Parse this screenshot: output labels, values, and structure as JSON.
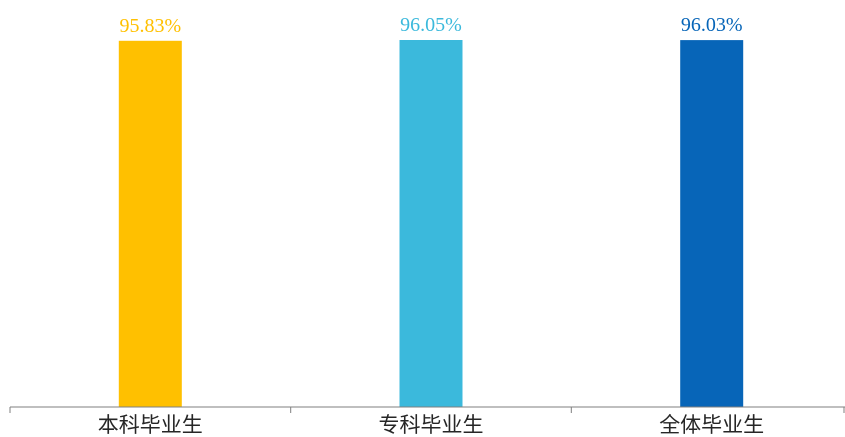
{
  "chart_data": {
    "type": "bar",
    "categories": [
      "本科毕业生",
      "专科毕业生",
      "全体毕业生"
    ],
    "values": [
      95.83,
      96.05,
      96.03
    ],
    "data_labels": [
      "95.83%",
      "96.05%",
      "96.03%"
    ],
    "colors": [
      "#FFC000",
      "#3BB9DC",
      "#0765B8"
    ],
    "title": "",
    "xlabel": "",
    "ylabel": "",
    "ylim": [
      0,
      96.05
    ],
    "grid": false,
    "legend": "none",
    "y_axis_visible": false,
    "axis_color": "#7f7f7f",
    "tick_label_color": "#262626"
  }
}
